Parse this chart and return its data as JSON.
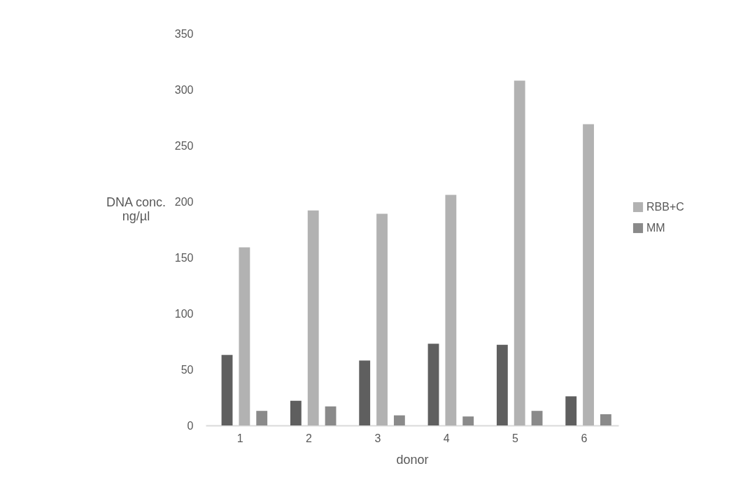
{
  "chart_data": {
    "type": "bar",
    "xlabel": "donor",
    "ylabel": "DNA conc.\nng/µl",
    "categories": [
      "1",
      "2",
      "3",
      "4",
      "5",
      "6"
    ],
    "series": [
      {
        "color": "#5f5f5f",
        "values": [
          63,
          22,
          58,
          73,
          72,
          26
        ]
      },
      {
        "name": "RBB+C",
        "color": "#b2b2b2",
        "values": [
          159,
          192,
          189,
          206,
          308,
          269
        ]
      },
      {
        "name": "MM",
        "color": "#8a8a8a",
        "values": [
          13,
          17,
          9,
          8,
          13,
          10
        ]
      }
    ],
    "ylim": [
      0,
      350
    ],
    "yticks": [
      0,
      50,
      100,
      150,
      200,
      250,
      300,
      350
    ],
    "grid": false,
    "legend": "right"
  }
}
